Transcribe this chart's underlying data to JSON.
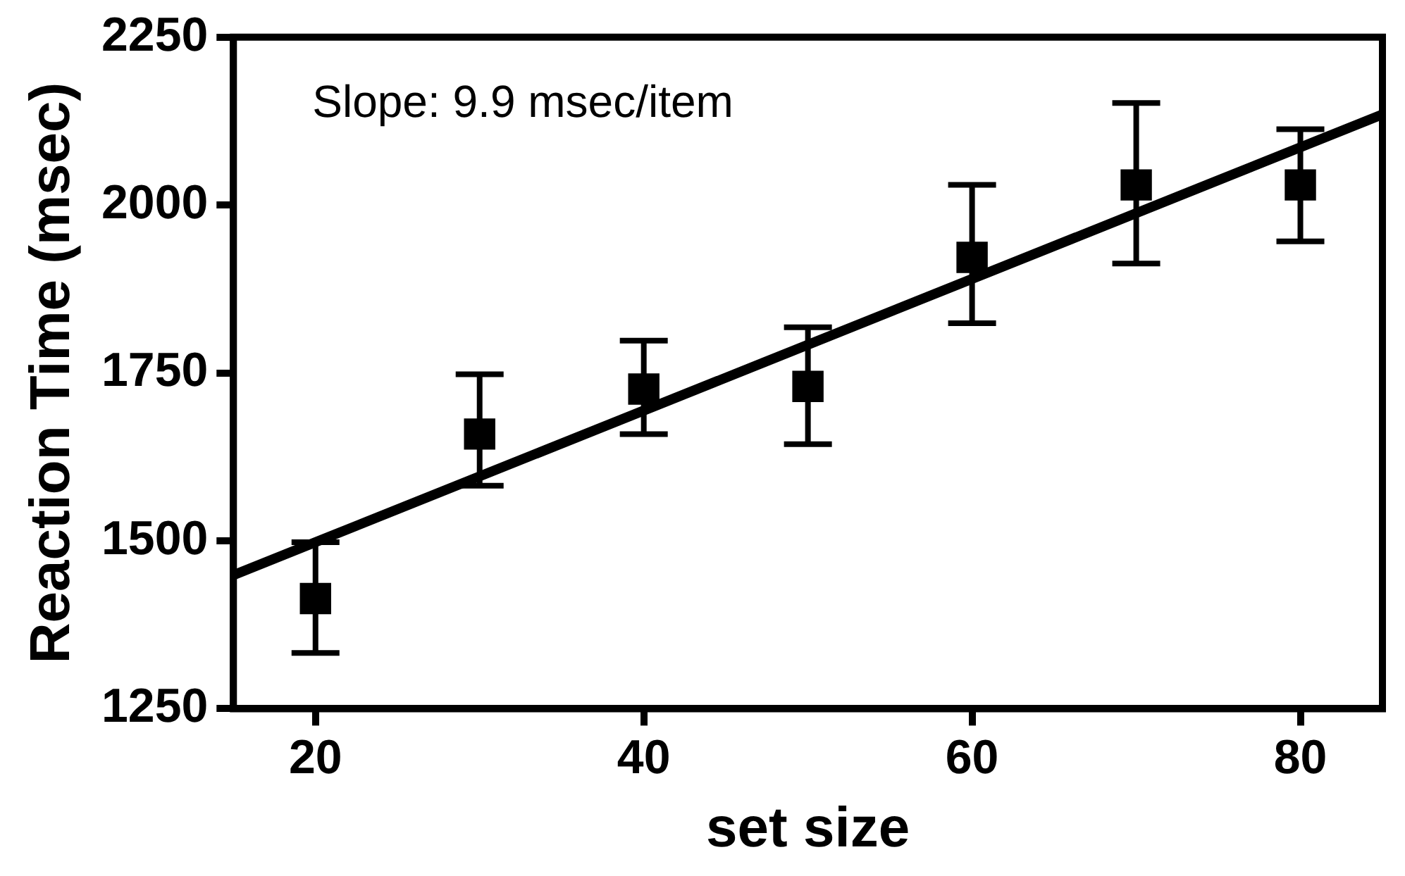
{
  "chart_data": {
    "type": "scatter",
    "xlabel": "set size",
    "ylabel": "Reaction Time (msec)",
    "annotations": [
      "Slope: 9.9 msec/item"
    ],
    "xlim": [
      15,
      85
    ],
    "xticks": [
      20,
      40,
      60,
      80
    ],
    "ylim": [
      1250,
      2250
    ],
    "yticks": [
      1250,
      1500,
      1750,
      2000,
      2250
    ],
    "grid": false,
    "legend": false,
    "marker": "square",
    "series": [
      {
        "color": "#000000",
        "x": [
          20,
          30,
          40,
          50,
          60,
          70,
          80
        ],
        "values": [
          1414,
          1659,
          1726,
          1730,
          1922,
          2030,
          2030
        ],
        "errors": [
          [
            1333,
            1498
          ],
          [
            1582,
            1748
          ],
          [
            1659,
            1798
          ],
          [
            1644,
            1818
          ],
          [
            1824,
            2030
          ],
          [
            1913,
            2152
          ],
          [
            1946,
            2113
          ]
        ]
      },
      {
        "type": "line",
        "color": "#000000",
        "line_style": "solid",
        "marker": "none",
        "x": [
          15,
          85
        ],
        "values": [
          1449,
          2135
        ]
      }
    ]
  }
}
